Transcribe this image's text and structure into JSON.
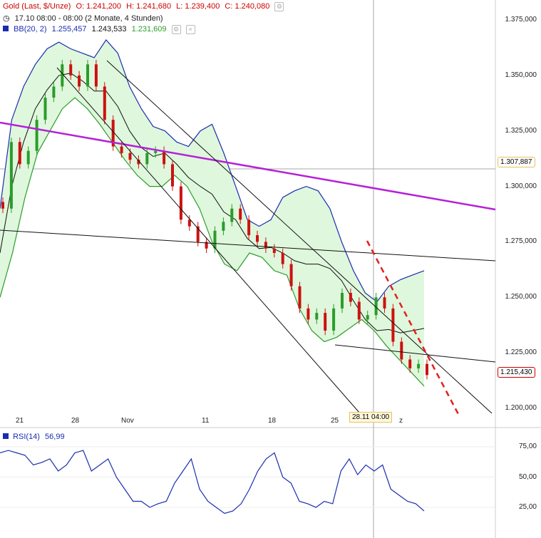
{
  "header": {
    "instrument": "Gold (Last, $/Unze)",
    "open": "O: 1.241,200",
    "high": "H: 1.241,680",
    "low": "L: 1.239,400",
    "close": "C: 1.240,080",
    "period": "17.10 08:00 - 08:00 (2 Monate, 4 Stunden)",
    "bb_label": "BB(20, 2)",
    "bb_upper": "1.255,457",
    "bb_mid": "1.243,533",
    "bb_lower": "1.231,609"
  },
  "rsi": {
    "label": "RSI(14)",
    "value": "56,99"
  },
  "tags": {
    "crosshair_price": "1.307,887",
    "last_price": "1.215,430",
    "crosshair_time": "28.11 04:00"
  },
  "colors": {
    "candle_up": "#2a9d2a",
    "candle_down": "#cc1111",
    "band_line": "#1a2db0",
    "band_fill": "#dff7dc",
    "trend_purple": "#b620d8",
    "trend_red": "#e02020",
    "rsi_line": "#1a2db0"
  },
  "chart_data": {
    "type": "candlestick",
    "y_ticks": [
      "1.200,000",
      "1.225,000",
      "1.250,000",
      "1.275,000",
      "1.300,000",
      "1.325,000",
      "1.350,000",
      "1.375,000"
    ],
    "y_tick_values": [
      1200,
      1225,
      1250,
      1275,
      1300,
      1325,
      1350,
      1375
    ],
    "x_ticks": [
      "21",
      "28",
      "Nov",
      "11",
      "18",
      "25",
      "z"
    ],
    "rsi_ticks": [
      "75,00",
      "50,00",
      "25,00"
    ],
    "rsi_tick_values": [
      75,
      50,
      25
    ],
    "rsi_range": [
      10,
      90
    ],
    "price_range": [
      1195,
      1380
    ],
    "crosshair_price_value": 1307.887,
    "last_price_value": 1215.43,
    "close_path": [
      1290,
      1320,
      1310,
      1316,
      1330,
      1340,
      1345,
      1355,
      1350,
      1345,
      1355,
      1345,
      1330,
      1318,
      1315,
      1312,
      1310,
      1315,
      1316,
      1310,
      1300,
      1285,
      1282,
      1275,
      1272,
      1280,
      1284,
      1290,
      1285,
      1278,
      1275,
      1272,
      1270,
      1265,
      1255,
      1245,
      1240,
      1243,
      1235,
      1245,
      1252,
      1248,
      1240,
      1242,
      1250,
      1245,
      1230,
      1222,
      1218,
      1220,
      1215
    ],
    "bb_upper_path": [
      1290,
      1330,
      1345,
      1355,
      1362,
      1365,
      1362,
      1360,
      1358,
      1366,
      1360,
      1345,
      1335,
      1327,
      1325,
      1320,
      1318,
      1325,
      1328,
      1315,
      1300,
      1285,
      1282,
      1285,
      1295,
      1298,
      1300,
      1298,
      1290,
      1275,
      1262,
      1252,
      1248,
      1255,
      1258,
      1260,
      1262
    ],
    "bb_lower_path": [
      1250,
      1270,
      1295,
      1315,
      1325,
      1335,
      1340,
      1335,
      1328,
      1320,
      1312,
      1305,
      1300,
      1300,
      1305,
      1300,
      1290,
      1275,
      1265,
      1262,
      1270,
      1268,
      1262,
      1260,
      1245,
      1235,
      1230,
      1232,
      1236,
      1240,
      1235,
      1228,
      1222,
      1216,
      1210
    ],
    "rsi_path": [
      70,
      72,
      70,
      68,
      60,
      62,
      65,
      55,
      60,
      70,
      72,
      55,
      60,
      65,
      50,
      40,
      30,
      30,
      25,
      28,
      30,
      45,
      55,
      65,
      40,
      30,
      25,
      20,
      22,
      28,
      40,
      55,
      65,
      70,
      50,
      45,
      30,
      28,
      25,
      30,
      28,
      55,
      65,
      52,
      60,
      55,
      60,
      40,
      35,
      30,
      28,
      22
    ]
  }
}
